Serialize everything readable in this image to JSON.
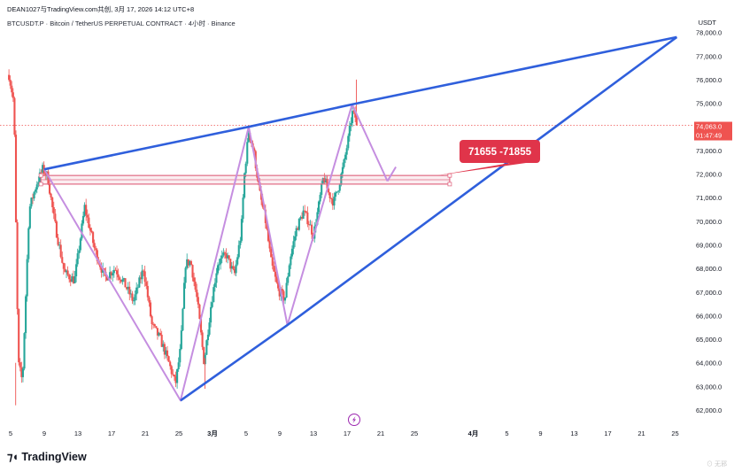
{
  "header": {
    "line1": "DEAN1027与TradingView.com共创, 3月 17, 2026 14:12 UTC+8",
    "line2": "BTCUSDT.P · Bitcoin / TetherUS PERPETUAL CONTRACT · 4小时 · Binance",
    "currency": "USDT"
  },
  "price_tag": {
    "price": "74,063.0",
    "countdown": "01:47:49"
  },
  "zone_callout": "71655 -71855",
  "footer": {
    "logo_text": "TradingView",
    "watermark": "⊙ 无邪"
  },
  "colors": {
    "up": "#26a69a",
    "down": "#ef5350",
    "trendline": "#2f5fdc",
    "pattern": "#c58ee0",
    "zone": "#e06b85",
    "callout": "#e0344a"
  },
  "chart_data": {
    "type": "candlestick",
    "symbol": "BTCUSDT.P",
    "timeframe": "4小时",
    "yaxis": {
      "ylim": [
        61400,
        78600
      ],
      "ticks": [
        "62,000.0",
        "63,000.0",
        "64,000.0",
        "65,000.0",
        "66,000.0",
        "67,000.0",
        "68,000.0",
        "69,000.0",
        "70,000.0",
        "71,000.0",
        "72,000.0",
        "73,000.0",
        "74,000.0",
        "75,000.0",
        "76,000.0",
        "77,000.0",
        "78,000.0"
      ],
      "tick_values": [
        62000,
        63000,
        64000,
        65000,
        66000,
        67000,
        68000,
        69000,
        70000,
        71000,
        72000,
        73000,
        74000,
        75000,
        76000,
        77000,
        78000
      ]
    },
    "xaxis": {
      "labels": [
        "5",
        "9",
        "13",
        "17",
        "21",
        "25",
        "3月",
        "5",
        "9",
        "13",
        "17",
        "21",
        "25",
        "4月",
        "5",
        "9",
        "13",
        "17",
        "21",
        "25"
      ],
      "label_days": [
        -24,
        -20,
        -16,
        -12,
        -8,
        -4,
        0,
        4,
        8,
        12,
        16,
        20,
        24,
        31,
        35,
        39,
        43,
        47,
        51,
        55
      ],
      "note": "day offsets from 1 March 2026"
    },
    "price_path": [
      [
        -24.2,
        76200
      ],
      [
        -23.6,
        75000
      ],
      [
        -23.1,
        64000
      ],
      [
        -22.6,
        63200
      ],
      [
        -21.8,
        70500
      ],
      [
        -20.9,
        71600
      ],
      [
        -20.2,
        72200
      ],
      [
        -19.6,
        71900
      ],
      [
        -18.8,
        70000
      ],
      [
        -17.6,
        67800
      ],
      [
        -16.4,
        67500
      ],
      [
        -15.2,
        70600
      ],
      [
        -14.0,
        68800
      ],
      [
        -12.8,
        67600
      ],
      [
        -11.6,
        68000
      ],
      [
        -10.4,
        67300
      ],
      [
        -9.4,
        66600
      ],
      [
        -8.2,
        68000
      ],
      [
        -7.2,
        65600
      ],
      [
        -6.2,
        65000
      ],
      [
        -5.2,
        64000
      ],
      [
        -4.4,
        63100
      ],
      [
        -3.8,
        64600
      ],
      [
        -3.2,
        68200
      ],
      [
        -2.6,
        68300
      ],
      [
        -1.8,
        66600
      ],
      [
        -1.0,
        64000
      ],
      [
        -0.2,
        66400
      ],
      [
        0.6,
        68200
      ],
      [
        1.6,
        68600
      ],
      [
        2.6,
        67700
      ],
      [
        3.4,
        69500
      ],
      [
        3.8,
        72000
      ],
      [
        4.3,
        73800
      ],
      [
        4.9,
        73000
      ],
      [
        5.6,
        71200
      ],
      [
        6.3,
        70000
      ],
      [
        7.0,
        68200
      ],
      [
        7.8,
        67100
      ],
      [
        8.6,
        66700
      ],
      [
        9.2,
        68400
      ],
      [
        10.0,
        69700
      ],
      [
        10.8,
        70400
      ],
      [
        11.4,
        70000
      ],
      [
        12.0,
        69400
      ],
      [
        12.6,
        70600
      ],
      [
        13.2,
        71900
      ],
      [
        13.8,
        71200
      ],
      [
        14.4,
        70800
      ],
      [
        15.0,
        71500
      ],
      [
        15.6,
        72400
      ],
      [
        16.2,
        73600
      ],
      [
        16.6,
        74600
      ],
      [
        17.0,
        74400
      ],
      [
        17.2,
        74063
      ]
    ],
    "last_price": 74063.0,
    "spikes": [
      {
        "x": 17.1,
        "low": 74100,
        "high": 76000
      },
      {
        "x": -23.4,
        "low": 62200,
        "high": 64000
      },
      {
        "x": -0.9,
        "low": 62900,
        "high": 64200
      }
    ],
    "annotations": {
      "rising_wedge_upper": [
        [
          -20.0,
          72200
        ],
        [
          4.3,
          74000
        ],
        [
          16.6,
          74950
        ],
        [
          55.2,
          77800
        ]
      ],
      "rising_wedge_lower": [
        [
          -3.8,
          62400
        ],
        [
          8.9,
          65600
        ],
        [
          55.2,
          77800
        ]
      ],
      "zigzag_pattern": [
        [
          -20.0,
          72200
        ],
        [
          -3.8,
          62400
        ],
        [
          4.3,
          74000
        ],
        [
          8.9,
          65600
        ],
        [
          16.6,
          74950
        ],
        [
          20.8,
          71700
        ]
      ],
      "projection_tail": [
        [
          20.8,
          71700
        ],
        [
          21.8,
          72300
        ]
      ],
      "support_zone": {
        "from": 71655,
        "to": 71855,
        "x_start": -20.4,
        "x_end": 28.2
      }
    }
  }
}
